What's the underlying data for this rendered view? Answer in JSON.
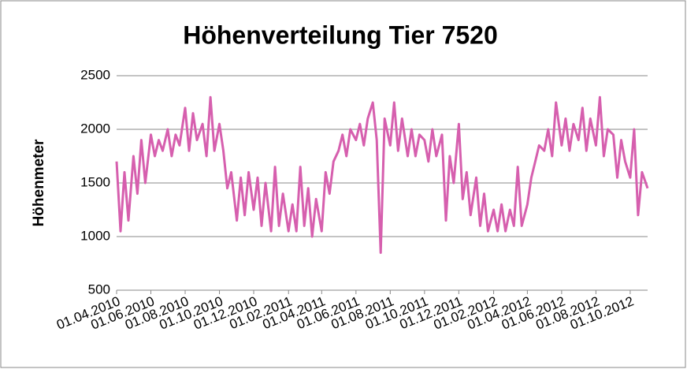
{
  "chart_data": {
    "type": "line",
    "title": "Höhenverteilung Tier 7520",
    "y_label": "Höhenmeter",
    "xlim": [
      "01.04.2010",
      "01.11.2012"
    ],
    "xticks": [
      "01.04.2010",
      "01.06.2010",
      "01.08.2010",
      "01.10.2010",
      "01.12.2010",
      "01.02.2011",
      "01.04.2011",
      "01.06.2011",
      "01.08.2011",
      "01.10.2011",
      "01.12.2011",
      "01.02.2012",
      "01.04.2012",
      "01.06.2012",
      "01.08.2012",
      "01.10.2012"
    ],
    "ylim": [
      500,
      2500
    ],
    "yticks": [
      500,
      1000,
      1500,
      2000,
      2500
    ],
    "grid": true,
    "series": [
      {
        "name": "Tier 7520",
        "color": "#d65fae",
        "x": [
          "01.04.2010",
          "08.04.2010",
          "15.04.2010",
          "22.04.2010",
          "01.05.2010",
          "08.05.2010",
          "15.05.2010",
          "22.05.2010",
          "01.06.2010",
          "08.06.2010",
          "15.06.2010",
          "22.06.2010",
          "01.07.2010",
          "08.07.2010",
          "15.07.2010",
          "22.07.2010",
          "01.08.2010",
          "08.08.2010",
          "15.08.2010",
          "22.08.2010",
          "01.09.2010",
          "08.09.2010",
          "15.09.2010",
          "22.09.2010",
          "01.10.2010",
          "08.10.2010",
          "15.10.2010",
          "22.10.2010",
          "01.11.2010",
          "08.11.2010",
          "15.11.2010",
          "22.11.2010",
          "01.12.2010",
          "08.12.2010",
          "15.12.2010",
          "22.12.2010",
          "01.01.2011",
          "08.01.2011",
          "15.01.2011",
          "22.01.2011",
          "01.02.2011",
          "08.02.2011",
          "15.02.2011",
          "22.02.2011",
          "01.03.2011",
          "08.03.2011",
          "15.03.2011",
          "22.03.2011",
          "01.04.2011",
          "08.04.2011",
          "15.04.2011",
          "22.04.2011",
          "01.05.2011",
          "08.05.2011",
          "15.05.2011",
          "22.05.2011",
          "01.06.2011",
          "08.06.2011",
          "15.06.2011",
          "22.06.2011",
          "01.07.2011",
          "08.07.2011",
          "15.07.2011",
          "22.07.2011",
          "01.08.2011",
          "08.08.2011",
          "15.08.2011",
          "22.08.2011",
          "01.09.2011",
          "08.09.2011",
          "15.09.2011",
          "22.09.2011",
          "01.10.2011",
          "08.10.2011",
          "15.10.2011",
          "22.10.2011",
          "01.11.2011",
          "08.11.2011",
          "15.11.2011",
          "22.11.2011",
          "01.12.2011",
          "08.12.2011",
          "15.12.2011",
          "22.12.2011",
          "01.01.2012",
          "08.01.2012",
          "15.01.2012",
          "22.01.2012",
          "01.02.2012",
          "08.02.2012",
          "15.02.2012",
          "22.02.2012",
          "01.03.2012",
          "08.03.2012",
          "15.03.2012",
          "22.03.2012",
          "01.04.2012",
          "08.04.2012",
          "15.04.2012",
          "22.04.2012",
          "01.05.2012",
          "08.05.2012",
          "15.05.2012",
          "22.05.2012",
          "01.06.2012",
          "08.06.2012",
          "15.06.2012",
          "22.06.2012",
          "01.07.2012",
          "08.07.2012",
          "15.07.2012",
          "22.07.2012",
          "01.08.2012",
          "08.08.2012",
          "15.08.2012",
          "22.08.2012",
          "01.09.2012",
          "08.09.2012",
          "15.09.2012",
          "22.09.2012",
          "01.10.2012",
          "08.10.2012",
          "15.10.2012",
          "22.10.2012",
          "01.11.2012"
        ],
        "values": [
          1700,
          1050,
          1600,
          1150,
          1750,
          1400,
          1900,
          1500,
          1950,
          1750,
          1900,
          1800,
          2000,
          1750,
          1950,
          1850,
          2200,
          1800,
          2150,
          1900,
          2050,
          1750,
          2300,
          1800,
          2050,
          1800,
          1450,
          1600,
          1150,
          1550,
          1200,
          1600,
          1250,
          1550,
          1100,
          1500,
          1050,
          1650,
          1100,
          1400,
          1050,
          1300,
          1050,
          1650,
          1100,
          1450,
          1000,
          1350,
          1050,
          1600,
          1400,
          1700,
          1800,
          1950,
          1750,
          2000,
          1900,
          2050,
          1850,
          2100,
          2250,
          1900,
          850,
          2100,
          1850,
          2250,
          1800,
          2100,
          1750,
          2000,
          1750,
          1950,
          1900,
          1700,
          2000,
          1750,
          1950,
          1150,
          1750,
          1500,
          2050,
          1350,
          1600,
          1200,
          1550,
          1100,
          1400,
          1050,
          1250,
          1050,
          1300,
          1050,
          1250,
          1100,
          1650,
          1100,
          1300,
          1550,
          1700,
          1850,
          1800,
          2000,
          1750,
          2250,
          1850,
          2100,
          1800,
          2050,
          1900,
          2200,
          1800,
          2100,
          1850,
          2300,
          1750,
          2000,
          1950,
          1550,
          1900,
          1700,
          1550,
          2000,
          1200,
          1600,
          1450
        ]
      }
    ]
  }
}
